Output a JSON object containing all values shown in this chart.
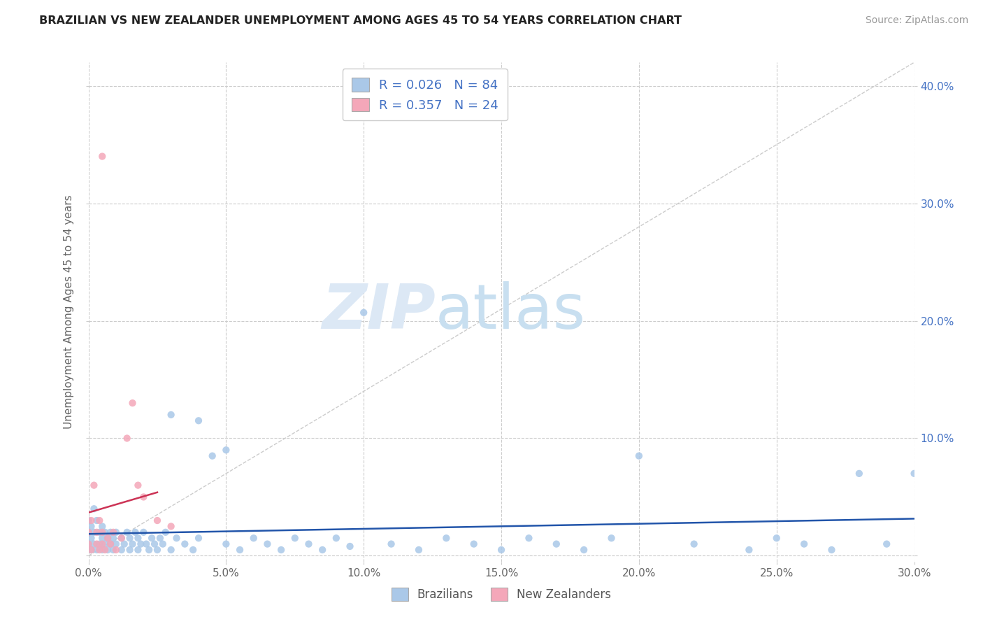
{
  "title": "BRAZILIAN VS NEW ZEALANDER UNEMPLOYMENT AMONG AGES 45 TO 54 YEARS CORRELATION CHART",
  "source": "Source: ZipAtlas.com",
  "ylabel": "Unemployment Among Ages 45 to 54 years",
  "xlim": [
    0.0,
    0.3
  ],
  "ylim": [
    -0.005,
    0.42
  ],
  "xticks": [
    0.0,
    0.05,
    0.1,
    0.15,
    0.2,
    0.25,
    0.3
  ],
  "yticks": [
    0.0,
    0.1,
    0.2,
    0.3,
    0.4
  ],
  "xtick_labels": [
    "0.0%",
    "5.0%",
    "10.0%",
    "15.0%",
    "20.0%",
    "25.0%",
    "30.0%"
  ],
  "ytick_labels_right": [
    "",
    "10.0%",
    "20.0%",
    "30.0%",
    "40.0%"
  ],
  "brazil_color": "#aac8e8",
  "nz_color": "#f4a7b9",
  "brazil_line_color": "#2255aa",
  "nz_line_color": "#cc3355",
  "watermark_zip": "ZIP",
  "watermark_atlas": "atlas",
  "brazil_N": 84,
  "nz_N": 24,
  "brazil_R": 0.026,
  "nz_R": 0.357,
  "legend1_label1": "R = 0.026   N = 84",
  "legend1_label2": "R = 0.357   N = 24",
  "legend2_label1": "Brazilians",
  "legend2_label2": "New Zealanders",
  "brazil_x": [
    0.0,
    0.0,
    0.0,
    0.001,
    0.001,
    0.001,
    0.002,
    0.002,
    0.002,
    0.003,
    0.003,
    0.004,
    0.004,
    0.005,
    0.005,
    0.005,
    0.006,
    0.006,
    0.007,
    0.007,
    0.008,
    0.008,
    0.009,
    0.009,
    0.01,
    0.01,
    0.012,
    0.012,
    0.013,
    0.014,
    0.015,
    0.015,
    0.016,
    0.017,
    0.018,
    0.018,
    0.019,
    0.02,
    0.021,
    0.022,
    0.023,
    0.024,
    0.025,
    0.026,
    0.027,
    0.028,
    0.03,
    0.03,
    0.032,
    0.035,
    0.038,
    0.04,
    0.04,
    0.045,
    0.05,
    0.05,
    0.055,
    0.06,
    0.065,
    0.07,
    0.075,
    0.08,
    0.085,
    0.09,
    0.095,
    0.1,
    0.11,
    0.12,
    0.13,
    0.14,
    0.15,
    0.16,
    0.17,
    0.18,
    0.19,
    0.2,
    0.22,
    0.24,
    0.25,
    0.26,
    0.27,
    0.28,
    0.29,
    0.3
  ],
  "brazil_y": [
    0.01,
    0.02,
    0.03,
    0.005,
    0.015,
    0.025,
    0.01,
    0.02,
    0.04,
    0.005,
    0.03,
    0.01,
    0.02,
    0.005,
    0.015,
    0.025,
    0.01,
    0.02,
    0.005,
    0.015,
    0.01,
    0.02,
    0.005,
    0.015,
    0.01,
    0.02,
    0.005,
    0.015,
    0.01,
    0.02,
    0.005,
    0.015,
    0.01,
    0.02,
    0.005,
    0.015,
    0.01,
    0.02,
    0.01,
    0.005,
    0.015,
    0.01,
    0.005,
    0.015,
    0.01,
    0.02,
    0.12,
    0.005,
    0.015,
    0.01,
    0.005,
    0.115,
    0.015,
    0.085,
    0.09,
    0.01,
    0.005,
    0.015,
    0.01,
    0.005,
    0.015,
    0.01,
    0.005,
    0.015,
    0.008,
    0.207,
    0.01,
    0.005,
    0.015,
    0.01,
    0.005,
    0.015,
    0.01,
    0.005,
    0.015,
    0.085,
    0.01,
    0.005,
    0.015,
    0.01,
    0.005,
    0.07,
    0.01,
    0.07
  ],
  "nz_x": [
    0.0,
    0.0,
    0.001,
    0.001,
    0.002,
    0.003,
    0.003,
    0.004,
    0.004,
    0.005,
    0.005,
    0.006,
    0.007,
    0.008,
    0.009,
    0.01,
    0.012,
    0.014,
    0.016,
    0.018,
    0.02,
    0.025,
    0.03,
    0.005
  ],
  "nz_y": [
    0.01,
    0.02,
    0.005,
    0.03,
    0.06,
    0.01,
    0.02,
    0.005,
    0.03,
    0.01,
    0.02,
    0.005,
    0.015,
    0.01,
    0.02,
    0.005,
    0.015,
    0.1,
    0.13,
    0.06,
    0.05,
    0.03,
    0.025,
    0.34
  ]
}
